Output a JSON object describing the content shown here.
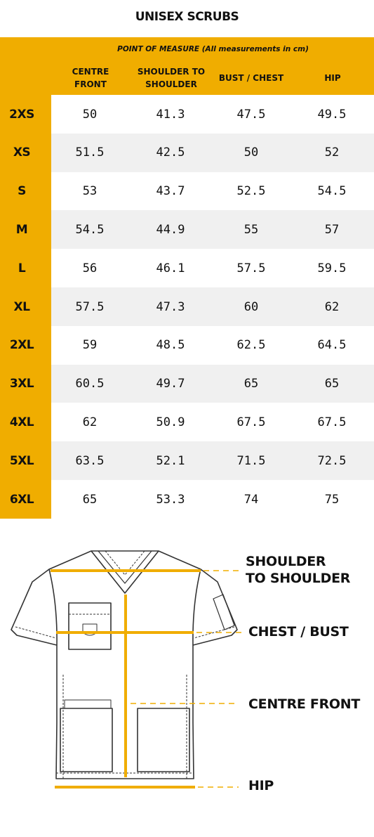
{
  "title": "UNISEX SCRUBS",
  "table": {
    "point_of_measure": "POINT OF MEASURE (All measurements in cm)",
    "columns": [
      {
        "line1": "CENTRE",
        "line2": "FRONT"
      },
      {
        "line1": "SHOULDER TO",
        "line2": "SHOULDER"
      },
      {
        "line1": "BUST / CHEST",
        "line2": ""
      },
      {
        "line1": "HIP",
        "line2": ""
      }
    ],
    "rows": [
      {
        "size": "2XS",
        "values": [
          "50",
          "41.3",
          "47.5",
          "49.5"
        ]
      },
      {
        "size": "XS",
        "values": [
          "51.5",
          "42.5",
          "50",
          "52"
        ]
      },
      {
        "size": "S",
        "values": [
          "53",
          "43.7",
          "52.5",
          "54.5"
        ]
      },
      {
        "size": "M",
        "values": [
          "54.5",
          "44.9",
          "55",
          "57"
        ]
      },
      {
        "size": "L",
        "values": [
          "56",
          "46.1",
          "57.5",
          "59.5"
        ]
      },
      {
        "size": "XL",
        "values": [
          "57.5",
          "47.3",
          "60",
          "62"
        ]
      },
      {
        "size": "2XL",
        "values": [
          "59",
          "48.5",
          "62.5",
          "64.5"
        ]
      },
      {
        "size": "3XL",
        "values": [
          "60.5",
          "49.7",
          "65",
          "65"
        ]
      },
      {
        "size": "4XL",
        "values": [
          "62",
          "50.9",
          "67.5",
          "67.5"
        ]
      },
      {
        "size": "5XL",
        "values": [
          "63.5",
          "52.1",
          "71.5",
          "72.5"
        ]
      },
      {
        "size": "6XL",
        "values": [
          "65",
          "53.3",
          "74",
          "75"
        ]
      }
    ]
  },
  "diagram": {
    "shoulder_line1": "SHOULDER",
    "shoulder_line2": "TO SHOULDER",
    "chest": "CHEST / BUST",
    "centre_front": "CENTRE FRONT",
    "hip": "HIP"
  },
  "colors": {
    "accent": "#f0ad00",
    "row_alt": "#f0f0f0",
    "row": "#ffffff",
    "text": "#111111"
  }
}
